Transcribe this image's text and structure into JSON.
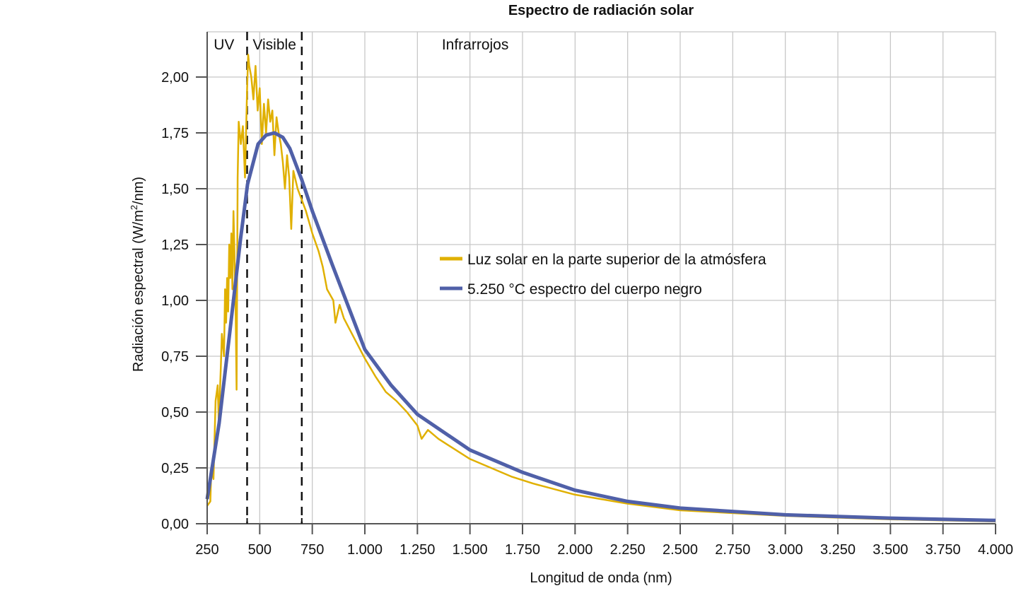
{
  "chart_data": {
    "type": "line",
    "title": "Espectro de radiación solar",
    "xlabel": "Longitud de onda (nm)",
    "ylabel": "Radiación espectral (W/m²/nm)",
    "ylabel_parts": {
      "before": "Radiación espectral (W/m",
      "sup": "2",
      "after": "/nm)"
    },
    "xlim": [
      250,
      4000
    ],
    "ylim": [
      0,
      2.2
    ],
    "grid": true,
    "legend_placement": "center-right",
    "x_ticks": [
      250,
      500,
      750,
      1000,
      1250,
      1500,
      1750,
      2000,
      2250,
      2500,
      2750,
      3000,
      3250,
      3500,
      3750,
      4000
    ],
    "x_tick_labels": [
      "250",
      "500",
      "750",
      "1.000",
      "1.250",
      "1.500",
      "1.750",
      "2.000",
      "2.250",
      "2.500",
      "2.750",
      "3.000",
      "3.250",
      "3.500",
      "3.750",
      "4.000"
    ],
    "y_ticks": [
      0,
      0.25,
      0.5,
      0.75,
      1.0,
      1.25,
      1.5,
      1.75,
      2.0
    ],
    "y_tick_labels": [
      "0,00",
      "0,25",
      "0,50",
      "0,75",
      "1,00",
      "1,25",
      "1,50",
      "1,75",
      "2,00"
    ],
    "regions": [
      {
        "label": "UV",
        "x": 330
      },
      {
        "label": "Visible",
        "x": 570
      },
      {
        "label": "Infrarrojos",
        "x": 1525
      }
    ],
    "boundaries": [
      440,
      700
    ],
    "series": [
      {
        "name": "Luz solar en la parte superior de la atmósfera",
        "color": "#E0B000",
        "points": [
          [
            250,
            0.08
          ],
          [
            265,
            0.1
          ],
          [
            270,
            0.25
          ],
          [
            280,
            0.2
          ],
          [
            290,
            0.55
          ],
          [
            300,
            0.62
          ],
          [
            305,
            0.45
          ],
          [
            315,
            0.7
          ],
          [
            320,
            0.85
          ],
          [
            330,
            0.75
          ],
          [
            335,
            1.05
          ],
          [
            340,
            0.9
          ],
          [
            345,
            1.1
          ],
          [
            350,
            0.95
          ],
          [
            355,
            1.25
          ],
          [
            360,
            1.1
          ],
          [
            365,
            1.3
          ],
          [
            370,
            1.05
          ],
          [
            375,
            1.4
          ],
          [
            380,
            1.2
          ],
          [
            385,
            1.0
          ],
          [
            390,
            0.6
          ],
          [
            395,
            1.55
          ],
          [
            400,
            1.8
          ],
          [
            410,
            1.7
          ],
          [
            420,
            1.78
          ],
          [
            430,
            1.55
          ],
          [
            435,
            1.75
          ],
          [
            440,
            1.95
          ],
          [
            445,
            2.1
          ],
          [
            450,
            2.05
          ],
          [
            460,
            2.0
          ],
          [
            470,
            1.9
          ],
          [
            480,
            2.05
          ],
          [
            490,
            1.85
          ],
          [
            500,
            1.95
          ],
          [
            510,
            1.7
          ],
          [
            520,
            1.88
          ],
          [
            530,
            1.75
          ],
          [
            540,
            1.9
          ],
          [
            550,
            1.8
          ],
          [
            560,
            1.85
          ],
          [
            570,
            1.65
          ],
          [
            580,
            1.82
          ],
          [
            590,
            1.75
          ],
          [
            600,
            1.7
          ],
          [
            610,
            1.62
          ],
          [
            620,
            1.5
          ],
          [
            630,
            1.65
          ],
          [
            640,
            1.55
          ],
          [
            650,
            1.32
          ],
          [
            660,
            1.58
          ],
          [
            680,
            1.5
          ],
          [
            700,
            1.45
          ],
          [
            720,
            1.4
          ],
          [
            750,
            1.3
          ],
          [
            780,
            1.22
          ],
          [
            800,
            1.15
          ],
          [
            820,
            1.05
          ],
          [
            850,
            1.0
          ],
          [
            860,
            0.9
          ],
          [
            880,
            0.98
          ],
          [
            900,
            0.92
          ],
          [
            950,
            0.83
          ],
          [
            1000,
            0.74
          ],
          [
            1050,
            0.66
          ],
          [
            1100,
            0.59
          ],
          [
            1150,
            0.55
          ],
          [
            1200,
            0.5
          ],
          [
            1250,
            0.44
          ],
          [
            1270,
            0.38
          ],
          [
            1300,
            0.42
          ],
          [
            1350,
            0.38
          ],
          [
            1400,
            0.35
          ],
          [
            1450,
            0.32
          ],
          [
            1500,
            0.29
          ],
          [
            1600,
            0.25
          ],
          [
            1700,
            0.21
          ],
          [
            1800,
            0.18
          ],
          [
            2000,
            0.13
          ],
          [
            2250,
            0.09
          ],
          [
            2500,
            0.06
          ],
          [
            3000,
            0.035
          ],
          [
            3500,
            0.02
          ],
          [
            4000,
            0.01
          ]
        ]
      },
      {
        "name": "5.250 °C espectro del cuerpo negro",
        "color": "#5060A8",
        "points": [
          [
            250,
            0.11
          ],
          [
            307,
            0.45
          ],
          [
            358,
            0.86
          ],
          [
            408,
            1.27
          ],
          [
            442,
            1.52
          ],
          [
            492,
            1.7
          ],
          [
            530,
            1.74
          ],
          [
            570,
            1.75
          ],
          [
            610,
            1.73
          ],
          [
            643,
            1.68
          ],
          [
            700,
            1.54
          ],
          [
            750,
            1.4
          ],
          [
            845,
            1.16
          ],
          [
            1000,
            0.78
          ],
          [
            1125,
            0.62
          ],
          [
            1250,
            0.49
          ],
          [
            1500,
            0.33
          ],
          [
            1750,
            0.23
          ],
          [
            2000,
            0.15
          ],
          [
            2250,
            0.1
          ],
          [
            2500,
            0.07
          ],
          [
            3000,
            0.04
          ],
          [
            3500,
            0.025
          ],
          [
            4000,
            0.015
          ]
        ]
      }
    ]
  }
}
